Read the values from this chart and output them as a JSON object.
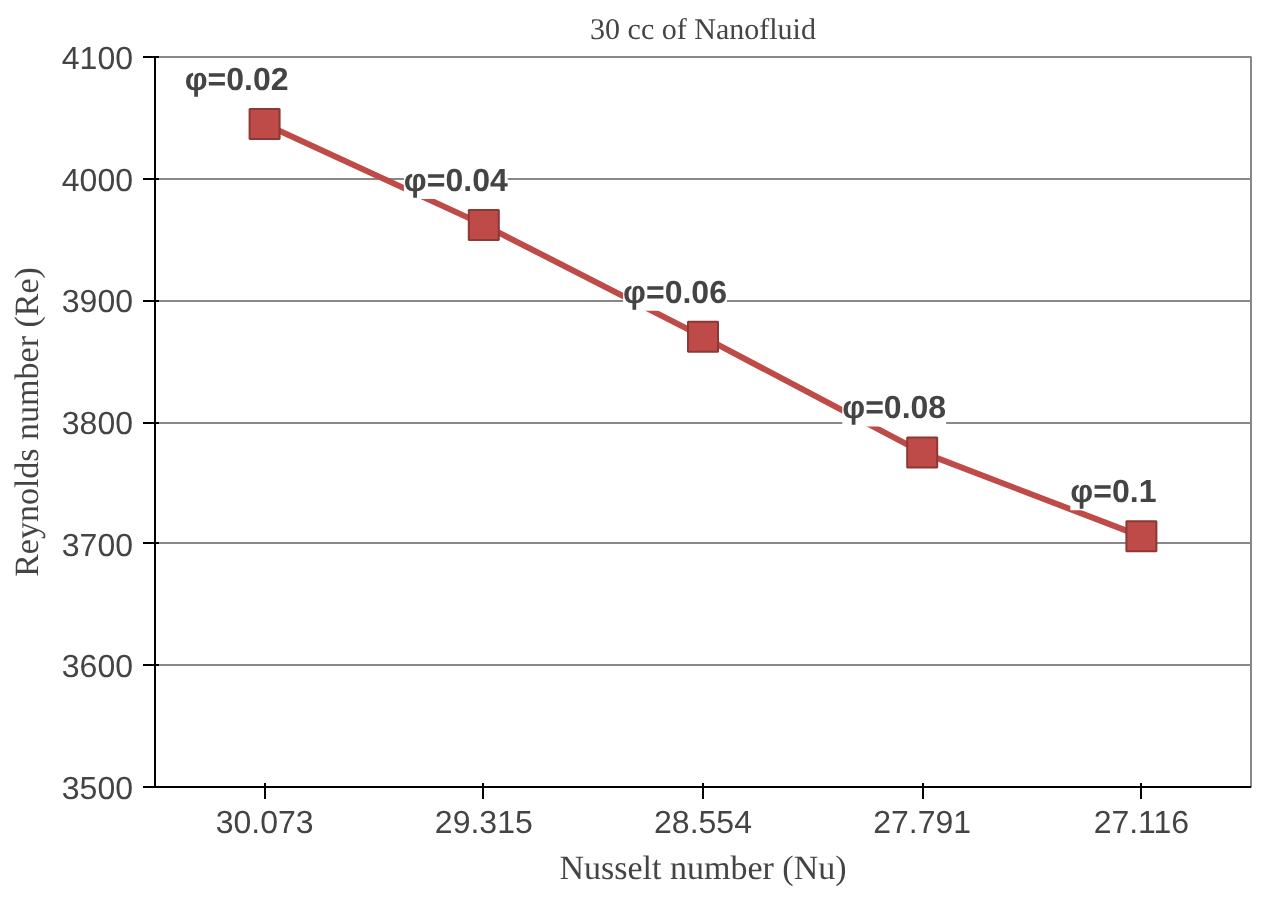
{
  "chart_data": {
    "type": "line",
    "title": "30 cc of Nanofluid",
    "xlabel": "Nusselt number (Nu)",
    "ylabel": "Reynolds number (Re)",
    "categories": [
      "30.073",
      "29.315",
      "28.554",
      "27.791",
      "27.116"
    ],
    "series": [
      {
        "color": "#be4b48",
        "values": [
          4045,
          3962,
          3870,
          3775,
          3706
        ]
      }
    ],
    "ylim": [
      3500,
      4100
    ],
    "yticks": [
      3500,
      3600,
      3700,
      3800,
      3900,
      4000,
      4100
    ],
    "grid": "y",
    "marker": "square",
    "line_style": "solid",
    "annotations": [
      {
        "text": "φ=0.02",
        "x": "30.073",
        "y": 4045
      },
      {
        "text": "φ=0.04",
        "x": "29.315",
        "y": 3962
      },
      {
        "text": "φ=0.06",
        "x": "28.554",
        "y": 3870
      },
      {
        "text": "φ=0.08",
        "x": "27.791",
        "y": 3775
      },
      {
        "text": "φ=0.1",
        "x": "27.116",
        "y": 3706
      }
    ]
  }
}
